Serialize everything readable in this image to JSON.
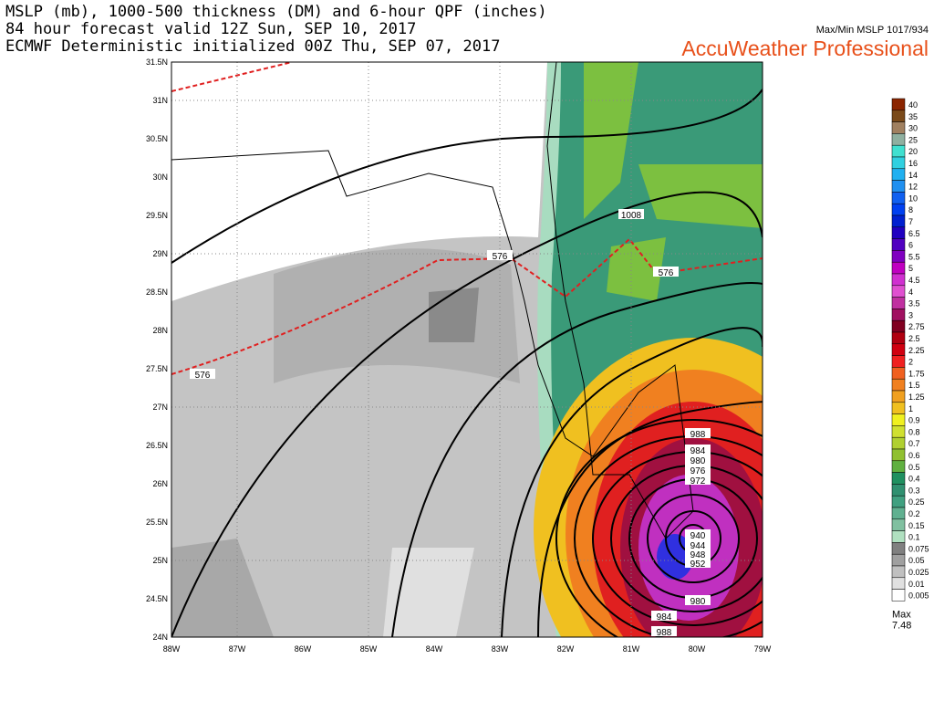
{
  "header": {
    "title_lines": [
      "MSLP (mb), 1000-500 thickness (DM) and 6-hour QPF (inches)",
      "84 hour forecast valid 12Z Sun, SEP 10, 2017",
      "ECMWF Deterministic initialized 00Z Thu, SEP 07, 2017"
    ],
    "max_min": "Max/Min MSLP 1017/934",
    "brand": "AccuWeather Professional"
  },
  "map": {
    "lat_labels": [
      "31.5N",
      "31N",
      "30.5N",
      "30N",
      "29.5N",
      "29N",
      "28.5N",
      "28N",
      "27.5N",
      "27N",
      "26.5N",
      "26N",
      "25.5N",
      "25N",
      "24.5N",
      "24N"
    ],
    "lon_labels": [
      "88W",
      "87W",
      "86W",
      "85W",
      "84W",
      "83W",
      "82W",
      "81W",
      "80W",
      "79W"
    ],
    "contour_labels": [
      "1008",
      "576",
      "576",
      "576",
      "988",
      "984",
      "980",
      "976",
      "972",
      "940",
      "944",
      "948",
      "952",
      "980",
      "984",
      "988"
    ]
  },
  "legend": {
    "labels": [
      "40",
      "35",
      "30",
      "25",
      "20",
      "16",
      "14",
      "12",
      "10",
      "8",
      "7",
      "6.5",
      "6",
      "5.5",
      "5",
      "4.5",
      "4",
      "3.5",
      "3",
      "2.75",
      "2.5",
      "2.25",
      "2",
      "1.75",
      "1.5",
      "1.25",
      "1",
      "0.9",
      "0.8",
      "0.7",
      "0.6",
      "0.5",
      "0.4",
      "0.3",
      "0.25",
      "0.2",
      "0.15",
      "0.1",
      "0.075",
      "0.05",
      "0.025",
      "0.01",
      "0.005"
    ],
    "colors": [
      "#8b2500",
      "#7a4a1a",
      "#a08060",
      "#8fb0a0",
      "#40e0d0",
      "#30d0e0",
      "#20b0f0",
      "#2090f0",
      "#1060f0",
      "#0040f0",
      "#0020d0",
      "#2000c0",
      "#5000c0",
      "#8000c0",
      "#c000c0",
      "#d030d0",
      "#e050d0",
      "#c030a0",
      "#a01060",
      "#800020",
      "#b00010",
      "#d00010",
      "#f02020",
      "#f06020",
      "#f08020",
      "#f0a020",
      "#f0c020",
      "#f0f020",
      "#d0e030",
      "#b0d030",
      "#90c030",
      "#60b040",
      "#209060",
      "#309070",
      "#40a080",
      "#60b090",
      "#80c0a0",
      "#b0e0c0",
      "#808080",
      "#a0a0a0",
      "#c0c0c0",
      "#e0e0e0",
      "#ffffff"
    ],
    "max_label": "Max",
    "max_value": "7.48"
  }
}
